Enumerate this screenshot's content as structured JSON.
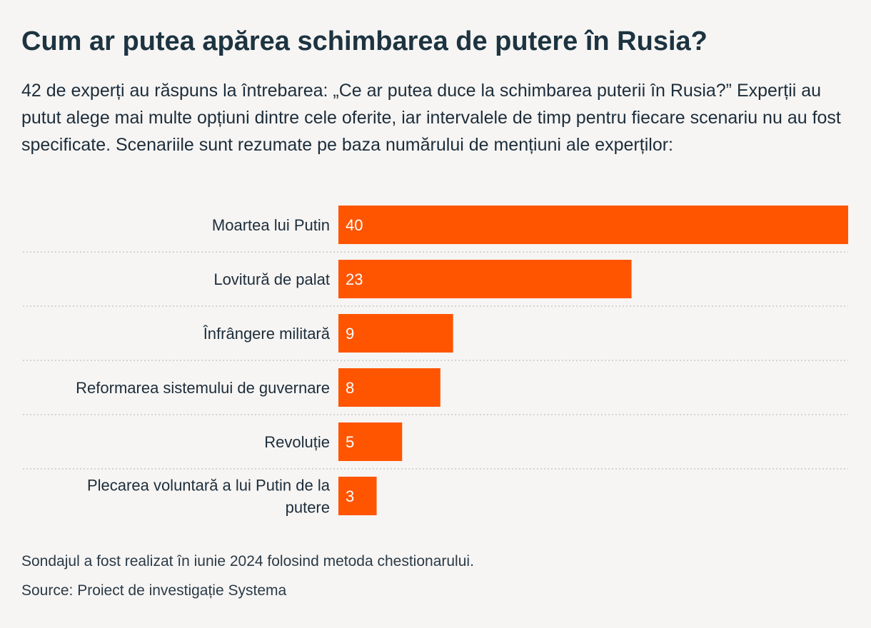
{
  "title": "Cum ar putea apărea schimbarea de putere în Rusia?",
  "subtitle": "42 de experți au răspuns la întrebarea: „Ce ar putea duce la schimbarea puterii în Rusia?” Experții au putut alege mai multe opțiuni dintre cele oferite, iar intervalele de timp pentru fiecare scenariu nu au fost specificate. Scenariile sunt rezumate pe baza numărului de mențiuni ale experților:",
  "note": "Sondajul a fost realizat în iunie 2024 folosind metoda chestionarului.",
  "source": "Source: Proiect de investigație Systema",
  "colors": {
    "bar": "#ff5500",
    "bar_label": "#ffffff",
    "category_label": "#1d2d3a",
    "separator": "#c9c9c9"
  },
  "chart_data": {
    "type": "bar",
    "orientation": "horizontal",
    "categories": [
      [
        "Moartea lui Putin"
      ],
      [
        "Lovitură de palat"
      ],
      [
        "Înfrângere militară"
      ],
      [
        "Reformarea sistemului de guvernare"
      ],
      [
        "Revoluție"
      ],
      [
        "Plecarea voluntară a lui Putin de la",
        "putere"
      ]
    ],
    "values": [
      40,
      23,
      9,
      8,
      5,
      3
    ],
    "value_max": 40,
    "title": "Cum ar putea apărea schimbarea de putere în Rusia?",
    "xlabel": "",
    "ylabel": "",
    "grid": false,
    "legend": "none"
  }
}
